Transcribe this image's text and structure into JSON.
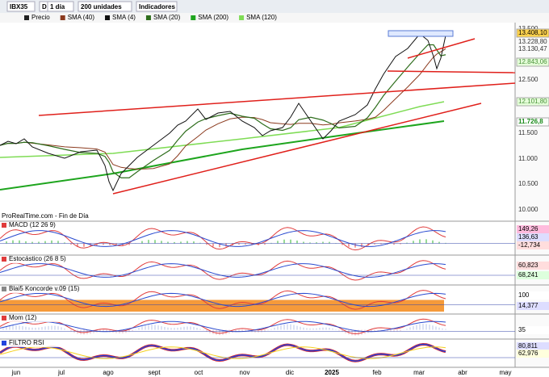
{
  "toolbar": {
    "symbol": "IBX35",
    "exchange": "D",
    "period": "1 día",
    "units": "200 unidades",
    "indicators": "Indicadores"
  },
  "legend": [
    "Precio",
    "SMA (40)",
    "SMA (4)",
    "SMA (20)",
    "SMA (200)",
    "SMA (120)"
  ],
  "price_axis": [
    "13.500",
    "13.408,10",
    "13.228,80",
    "13.130,47",
    "12.843,06",
    "12.500",
    "12.101,80",
    "11.726,8",
    "11.500",
    "11.000",
    "10.500",
    "10.000"
  ],
  "source": "ProRealTime.com - Fin de Día",
  "panels": [
    {
      "title": "MACD (12 26 9)",
      "labels": [
        "149,26",
        "136,63",
        "-12,734"
      ]
    },
    {
      "title": "Estocástico (26 8 5)",
      "labels": [
        "60,823",
        "68,241"
      ]
    },
    {
      "title": "Blai5 Koncorde v.09 (15)",
      "labels": [
        "100",
        "14,377"
      ]
    },
    {
      "title": "Mom (12)",
      "labels": [
        "35"
      ]
    },
    {
      "title": "FILTRO RSI",
      "labels": [
        "80,811",
        "62,976"
      ]
    }
  ],
  "months": [
    "jun",
    "jul",
    "ago",
    "sept",
    "oct",
    "nov",
    "dic",
    "2025",
    "feb",
    "mar",
    "abr",
    "may"
  ]
}
